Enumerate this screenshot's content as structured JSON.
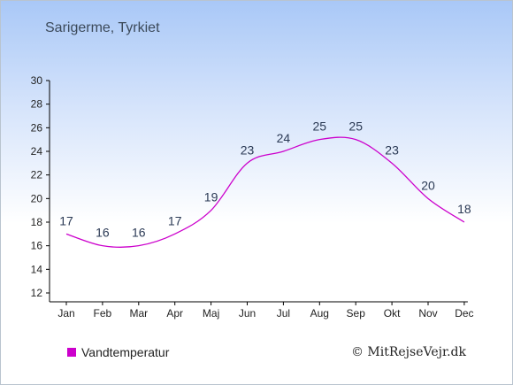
{
  "header": {
    "title": "Sarigerme, Tyrkiet"
  },
  "legend": {
    "label": "Vandtemperatur",
    "color": "#cc00cc"
  },
  "footer": {
    "copyright": "© MitRejseVejr.dk"
  },
  "chart_data": {
    "type": "line",
    "categories": [
      "Jan",
      "Feb",
      "Mar",
      "Apr",
      "Maj",
      "Jun",
      "Jul",
      "Aug",
      "Sep",
      "Okt",
      "Nov",
      "Dec"
    ],
    "series": [
      {
        "name": "Vandtemperatur",
        "values": [
          17,
          16,
          16,
          17,
          19,
          23,
          24,
          25,
          25,
          23,
          20,
          18
        ],
        "color": "#cc00cc"
      }
    ],
    "ylim": [
      12,
      30
    ],
    "yticks": [
      12,
      14,
      16,
      18,
      20,
      22,
      24,
      26,
      28,
      30
    ],
    "grid": false,
    "legend_position": "bottom-left"
  }
}
